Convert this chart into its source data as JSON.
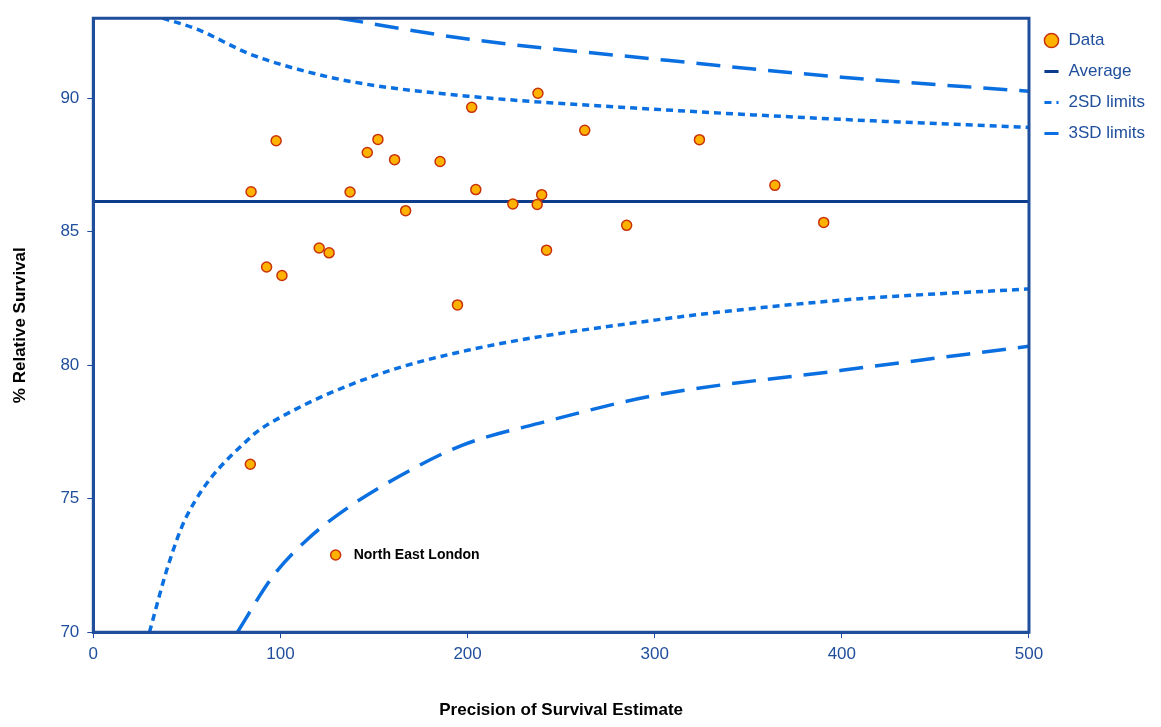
{
  "chart_data": {
    "type": "scatter",
    "xlabel": "Precision of Survival Estimate",
    "ylabel": "% Relative Survival",
    "xlim": [
      0,
      500
    ],
    "ylim": [
      70,
      93
    ],
    "xticks": [
      0,
      100,
      200,
      300,
      400,
      500
    ],
    "yticks": [
      70,
      75,
      80,
      85,
      90
    ],
    "grid": false,
    "legend": "right",
    "annotations": [
      {
        "text": "North East London",
        "x": 129.5,
        "y": 72.89
      }
    ],
    "series": [
      {
        "name": "Data",
        "type": "scatter",
        "marker": "circle",
        "color": "#ffb300",
        "x": [
          84.3,
          92.6,
          97.7,
          100.8,
          120.7,
          126,
          137.2,
          146.4,
          152.1,
          161,
          166.9,
          185.3,
          194.6,
          202.2,
          204.4,
          224.2,
          237.2,
          237.6,
          239.6,
          242.2,
          262.6,
          285,
          323.9,
          364.2,
          390.3,
          83.9,
          129.5
        ],
        "values": [
          86.5,
          83.68,
          88.41,
          83.36,
          84.39,
          84.21,
          86.49,
          87.97,
          88.46,
          87.7,
          85.79,
          87.63,
          82.26,
          89.66,
          86.58,
          86.04,
          86.02,
          90.19,
          86.39,
          84.31,
          88.8,
          85.24,
          88.45,
          86.74,
          85.35,
          76.29,
          72.89
        ]
      },
      {
        "name": "Average",
        "type": "line",
        "line_style": "solid",
        "color": "#0b3d8c",
        "x": [
          0,
          500
        ],
        "values": [
          86.13,
          86.13
        ]
      },
      {
        "name": "2SD limits",
        "type": "line",
        "line_style": "dotted",
        "color": "#0a6fe0",
        "x": [
          30,
          40,
          50,
          84,
          100,
          150,
          200,
          300,
          400,
          500
        ],
        "values": [
          70,
          72.5,
          74.36,
          77.3,
          78.05,
          79.6,
          80.56,
          81.69,
          82.44,
          82.86
        ]
      },
      {
        "type": "line",
        "line_style": "dotted",
        "color": "#0a6fe0",
        "x": [
          37,
          55,
          84,
          114,
          143,
          200,
          300,
          400,
          500
        ],
        "values": [
          93,
          92.6,
          91.65,
          91,
          90.56,
          90.08,
          89.59,
          89.21,
          88.91
        ]
      },
      {
        "name": "3SD limits",
        "type": "line",
        "line_style": "dashed",
        "color": "#0a6fe0",
        "x": [
          77,
          96,
          114.8,
          136,
          164,
          197,
          240.6,
          300,
          400,
          500
        ],
        "values": [
          70,
          72.1,
          73.5,
          74.66,
          75.86,
          77,
          77.87,
          78.87,
          79.81,
          80.71
        ]
      },
      {
        "type": "line",
        "line_style": "dashed",
        "color": "#0a6fe0",
        "x": [
          131.5,
          200,
          300,
          400,
          500
        ],
        "values": [
          93,
          92.22,
          91.47,
          90.79,
          90.26
        ]
      }
    ]
  }
}
